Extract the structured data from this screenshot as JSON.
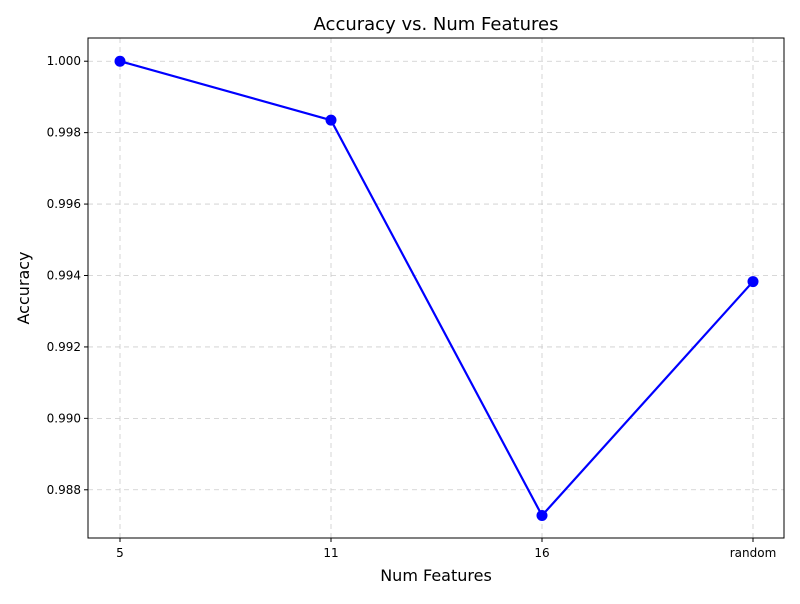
{
  "chart_data": {
    "type": "line",
    "title": "Accuracy vs. Num Features",
    "xlabel": "Num Features",
    "ylabel": "Accuracy",
    "categories": [
      "5",
      "11",
      "16",
      "random"
    ],
    "series": [
      {
        "values": [
          1.0,
          0.99835,
          0.98728,
          0.99383
        ],
        "color": "#0000ff"
      }
    ],
    "yticks": [
      "0.988",
      "0.990",
      "0.992",
      "0.994",
      "0.996",
      "0.998",
      "1.000"
    ],
    "ylim": [
      0.98665,
      1.00065
    ],
    "grid": true
  }
}
